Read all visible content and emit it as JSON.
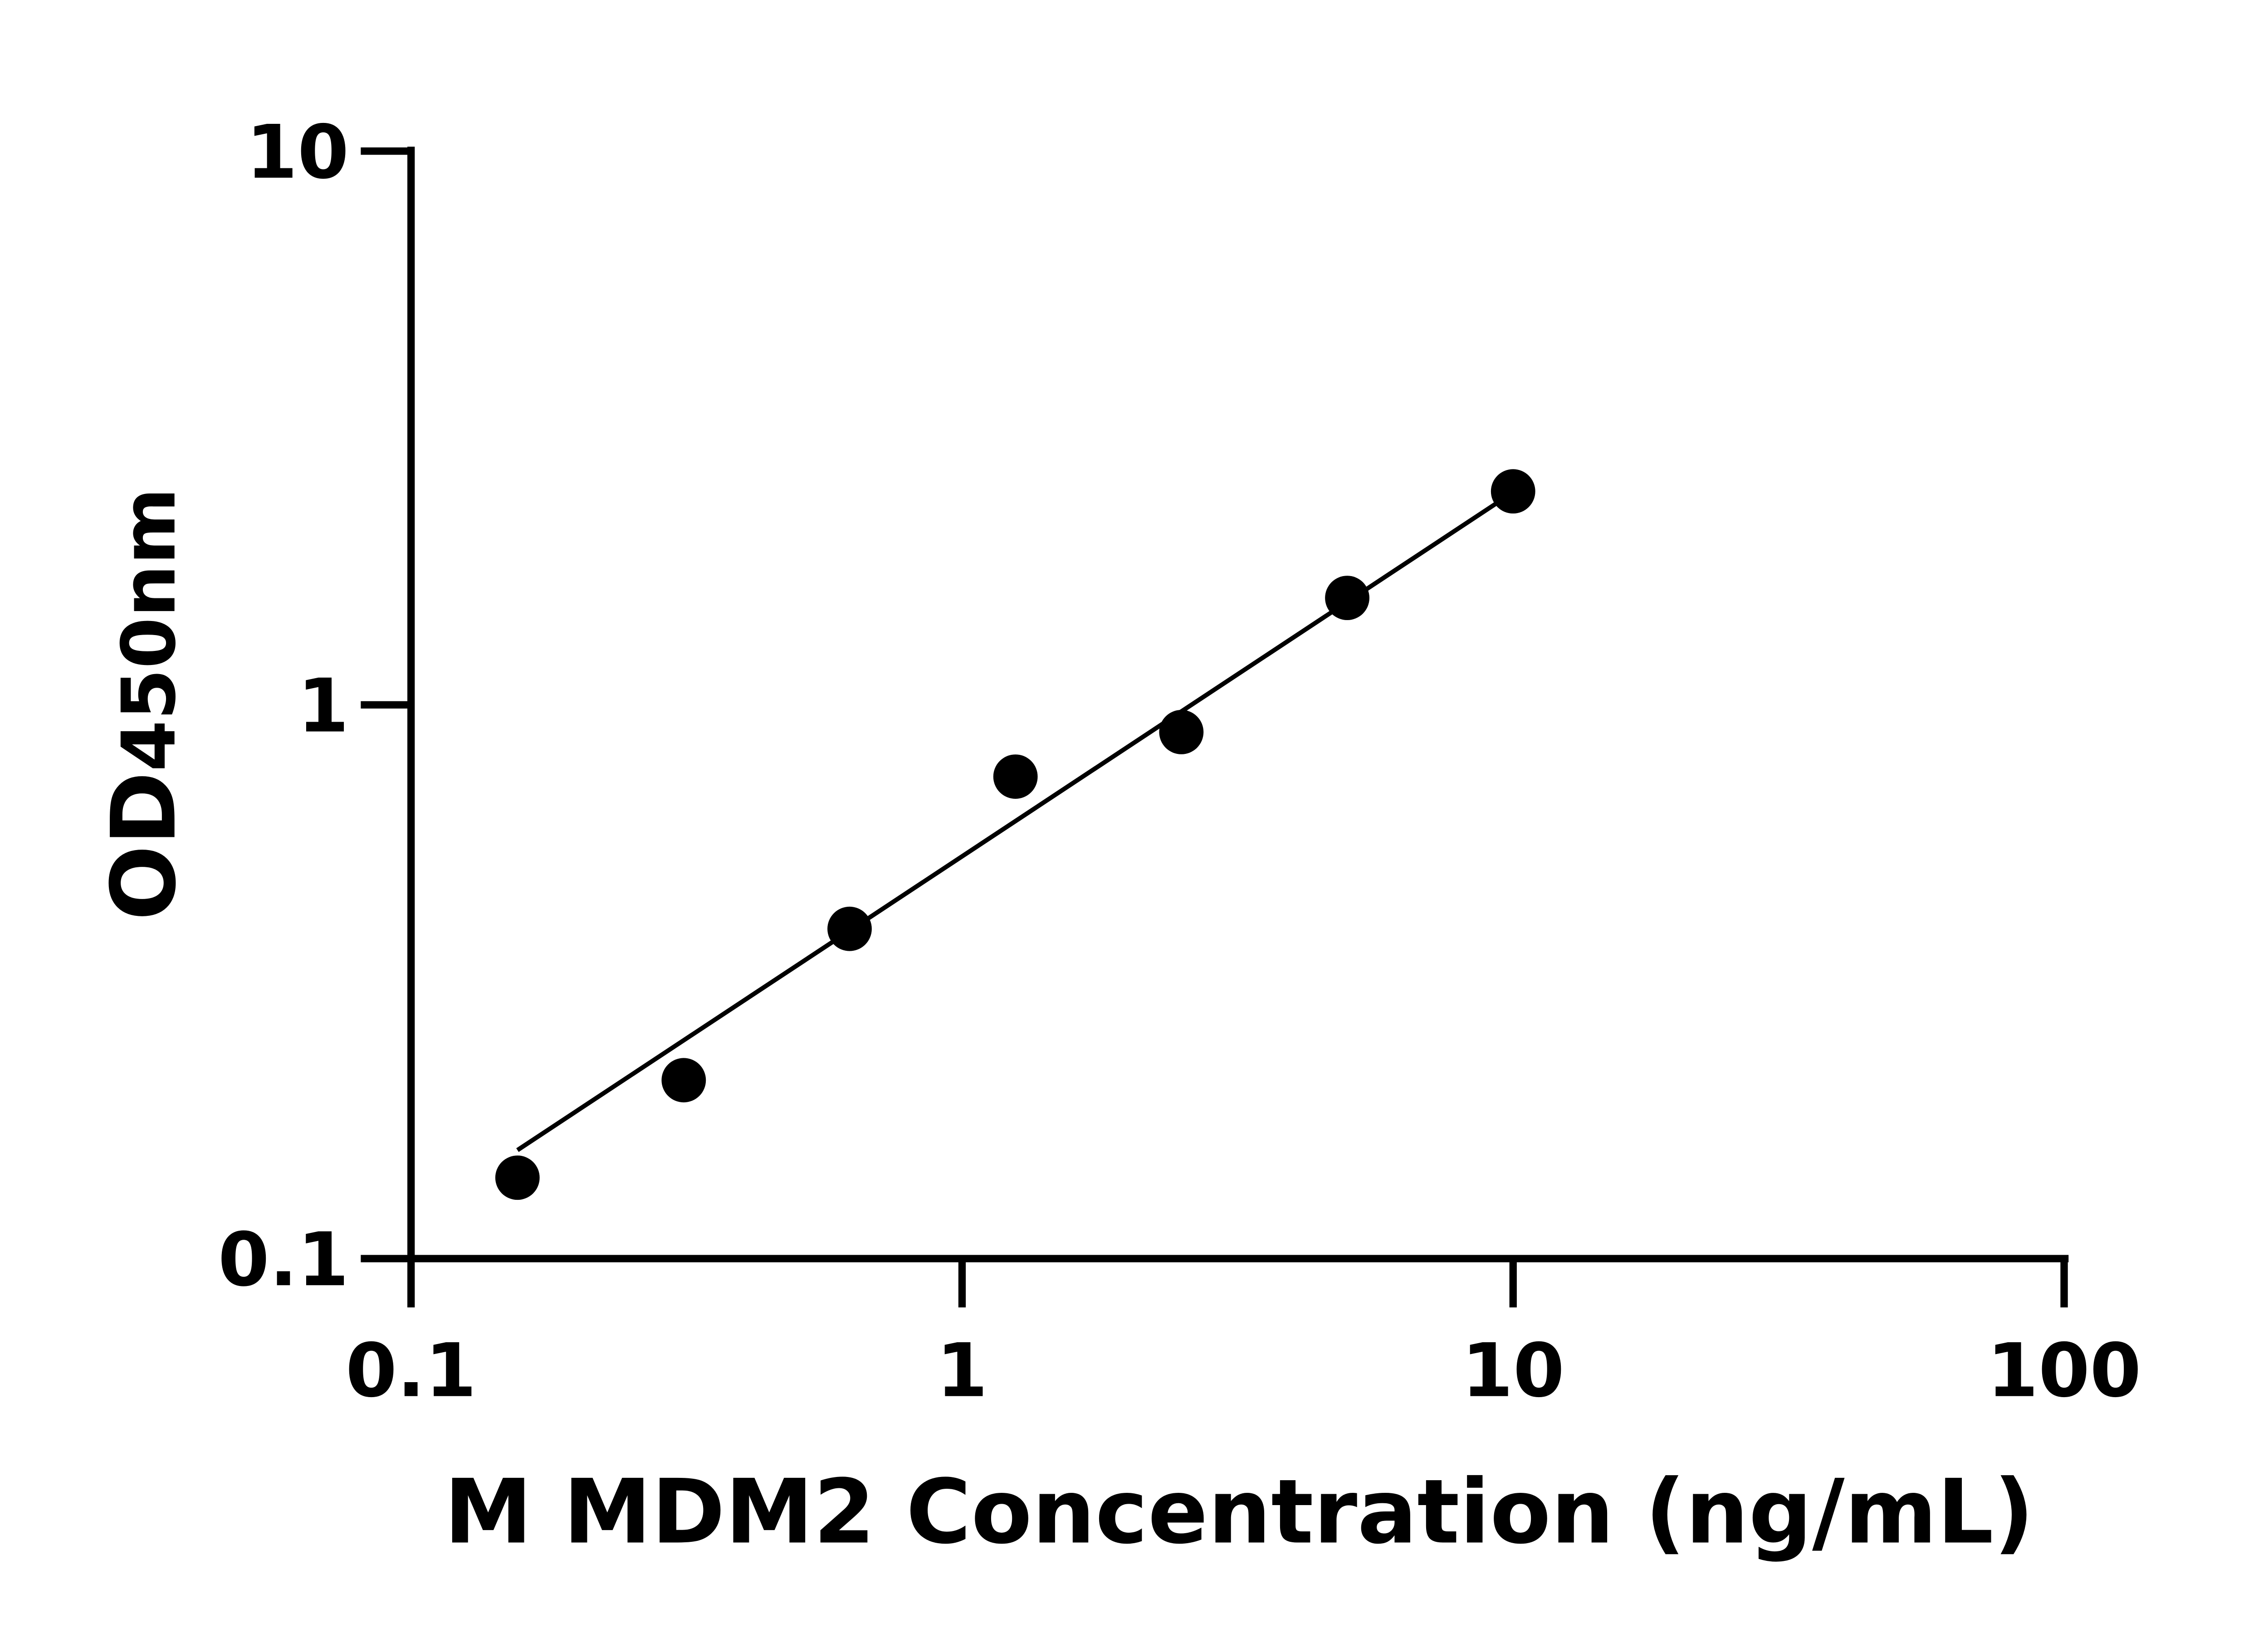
{
  "chart_data": {
    "type": "scatter",
    "title": "",
    "xlabel": "M MDM2 Concentration (ng/mL)",
    "ylabel": "OD",
    "ylabel_sub": "450nm",
    "x_scale": "log",
    "y_scale": "log",
    "xlim": [
      0.1,
      100
    ],
    "ylim": [
      0.1,
      10
    ],
    "x_ticks": [
      {
        "value": 0.1,
        "label": "0.1"
      },
      {
        "value": 1,
        "label": "1"
      },
      {
        "value": 10,
        "label": "10"
      },
      {
        "value": 100,
        "label": "100"
      }
    ],
    "y_ticks": [
      {
        "value": 0.1,
        "label": "0.1"
      },
      {
        "value": 1,
        "label": "1"
      },
      {
        "value": 10,
        "label": "10"
      }
    ],
    "grid": false,
    "points": [
      {
        "x": 0.156,
        "y": 0.14
      },
      {
        "x": 0.3125,
        "y": 0.21
      },
      {
        "x": 0.625,
        "y": 0.394
      },
      {
        "x": 1.25,
        "y": 0.742
      },
      {
        "x": 2.5,
        "y": 0.893
      },
      {
        "x": 5,
        "y": 1.56
      },
      {
        "x": 10,
        "y": 2.43
      }
    ],
    "fit_line": {
      "x": [
        0.156,
        9.5
      ],
      "y": [
        0.157,
        2.34
      ]
    },
    "colors": {
      "points": "#000000",
      "line": "#000000",
      "axes": "#000000"
    }
  }
}
